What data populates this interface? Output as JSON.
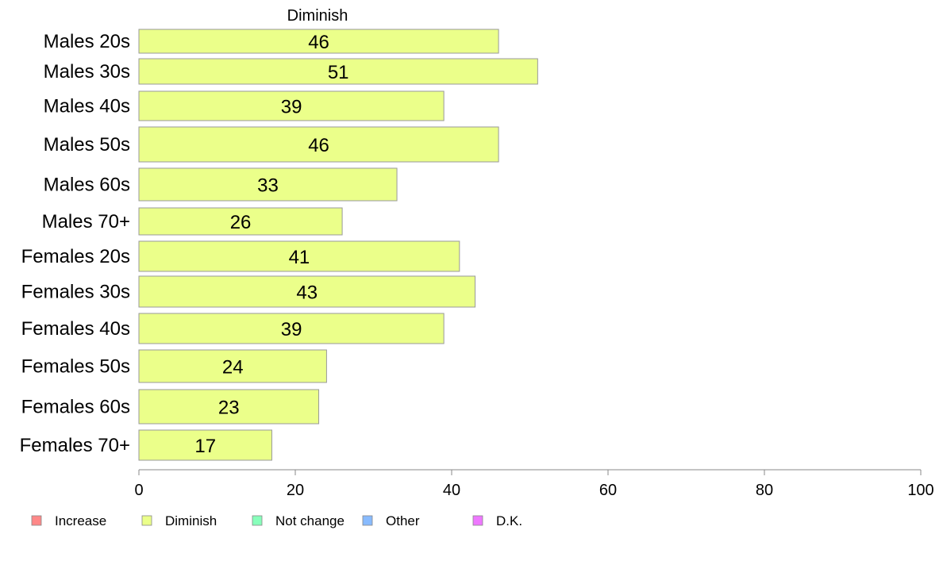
{
  "chart_data": {
    "type": "bar",
    "orientation": "horizontal",
    "panel_title": "Diminish",
    "categories": [
      "Males 20s",
      "Males 30s",
      "Males 40s",
      "Males 50s",
      "Males 60s",
      "Males 70+",
      "Females 20s",
      "Females 30s",
      "Females 40s",
      "Females 50s",
      "Females 60s",
      "Females 70+"
    ],
    "series": [
      {
        "name": "Diminish",
        "color": "#ebff8a",
        "values": [
          46,
          51,
          39,
          46,
          33,
          26,
          41,
          43,
          39,
          24,
          23,
          17
        ]
      }
    ],
    "data_labels": [
      "46",
      "51",
      "39",
      "46",
      "33",
      "26",
      "41",
      "43",
      "39",
      "24",
      "23",
      "17"
    ],
    "xlim": [
      0,
      100
    ],
    "x_ticks": [
      "0",
      "20",
      "40",
      "60",
      "80",
      "100"
    ],
    "grid": false,
    "legend": {
      "placement": "bottom",
      "entries": [
        {
          "label": "Increase",
          "color": "#ff8888"
        },
        {
          "label": "Diminish",
          "color": "#ebff8a"
        },
        {
          "label": "Not change",
          "color": "#88ffbb"
        },
        {
          "label": "Other",
          "color": "#88bbff"
        },
        {
          "label": "D.K.",
          "color": "#ee77ff"
        }
      ]
    },
    "bar_border_color": "#999999"
  }
}
